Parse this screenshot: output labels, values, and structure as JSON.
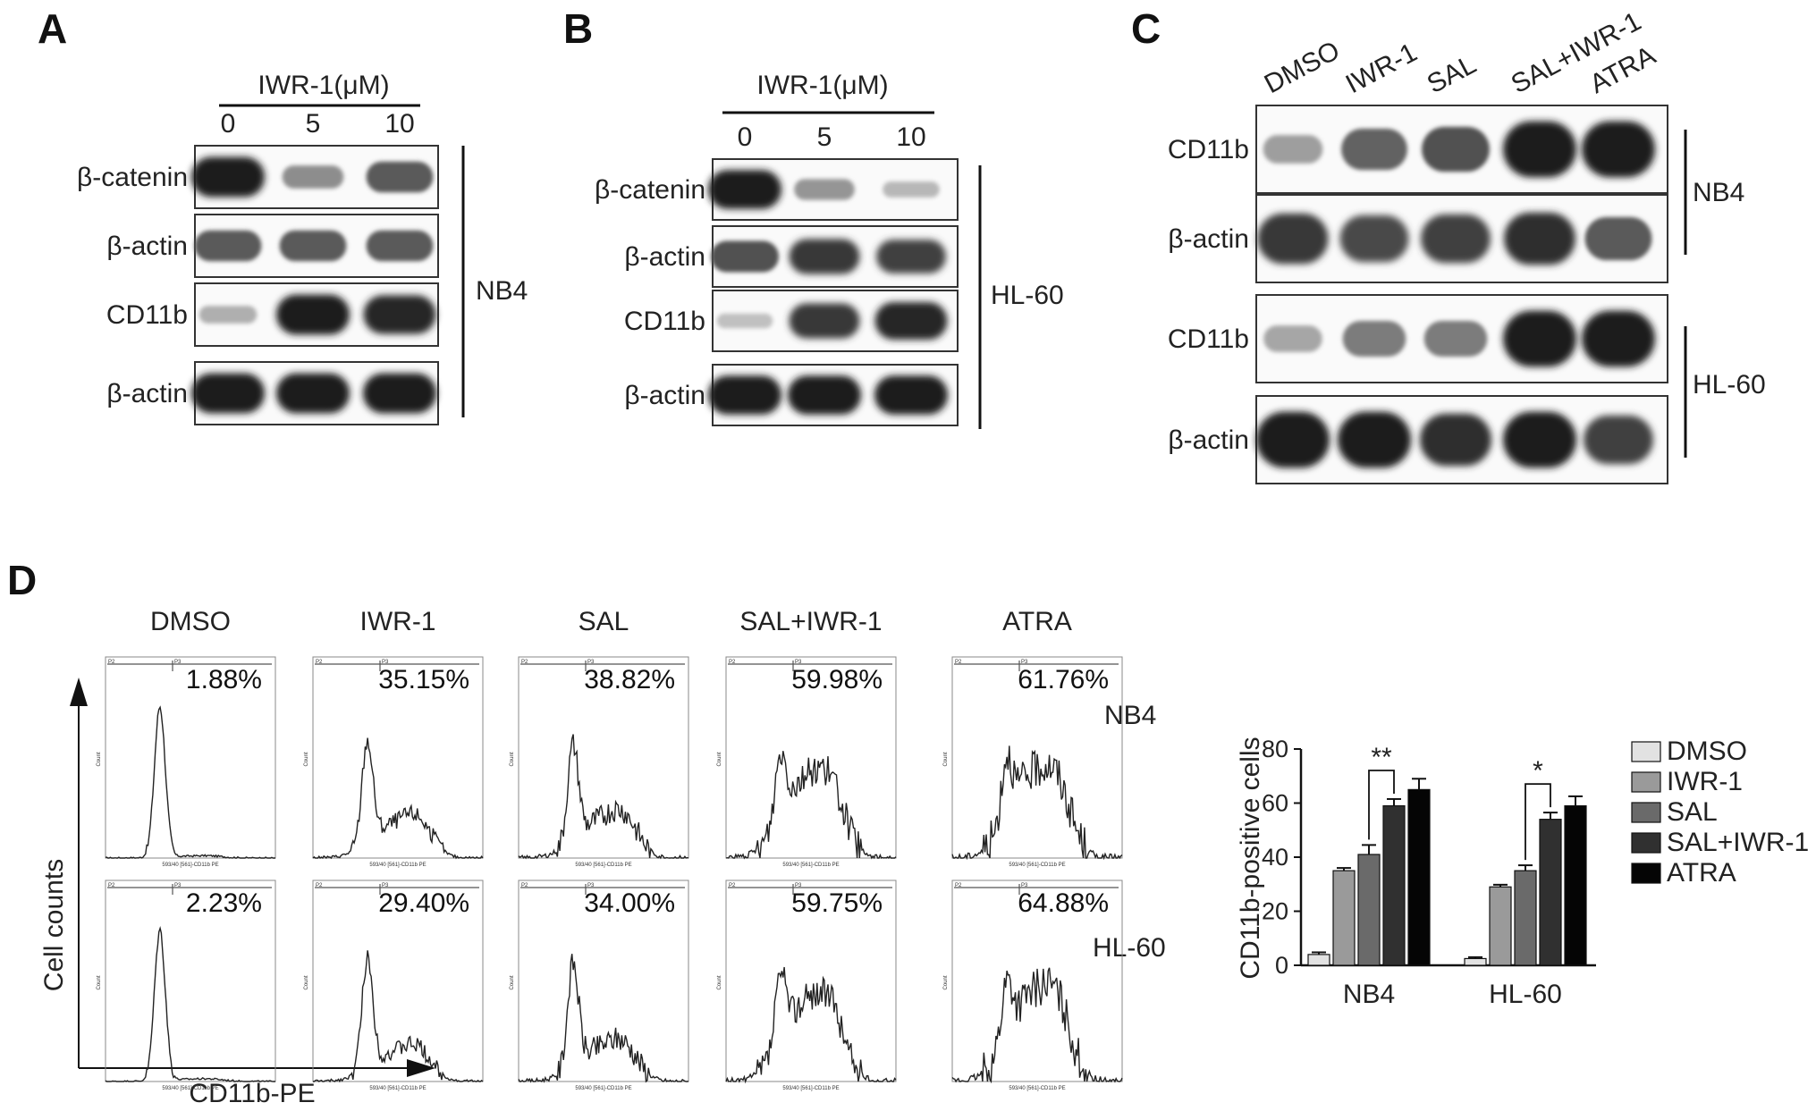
{
  "panel_labels": [
    "A",
    "B",
    "C",
    "D"
  ],
  "panelA": {
    "header": "IWR-1(μM)",
    "lanes": [
      "0",
      "5",
      "10"
    ],
    "rows": [
      {
        "label": "β-catenin",
        "bands": [
          1.0,
          0.35,
          0.65
        ]
      },
      {
        "label": "β-actin",
        "bands": [
          0.65,
          0.65,
          0.65
        ]
      },
      {
        "label": "CD11b",
        "bands": [
          0.15,
          1.0,
          0.95
        ]
      },
      {
        "label": "β-actin",
        "bands": [
          1.0,
          1.0,
          1.0
        ]
      }
    ],
    "cell_line": "NB4"
  },
  "panelB": {
    "header": "IWR-1(μM)",
    "lanes": [
      "0",
      "5",
      "10"
    ],
    "rows": [
      {
        "label": "β-catenin",
        "bands": [
          1.0,
          0.3,
          0.1
        ]
      },
      {
        "label": "β-actin",
        "bands": [
          0.7,
          0.85,
          0.8
        ]
      },
      {
        "label": "CD11b",
        "bands": [
          0.05,
          0.85,
          0.95
        ]
      },
      {
        "label": "β-actin",
        "bands": [
          1.0,
          1.0,
          1.0
        ]
      }
    ],
    "cell_line": "HL-60"
  },
  "panelC": {
    "lanes": [
      "DMSO",
      "IWR-1",
      "SAL",
      "SAL+IWR-1",
      "ATRA"
    ],
    "rows": [
      {
        "label": "CD11b",
        "bands": [
          0.25,
          0.6,
          0.7,
          1.0,
          1.0
        ]
      },
      {
        "label": "β-actin",
        "bands": [
          0.85,
          0.75,
          0.8,
          0.9,
          0.65
        ]
      },
      {
        "label": "CD11b",
        "bands": [
          0.2,
          0.45,
          0.45,
          1.0,
          1.0
        ]
      },
      {
        "label": "β-actin",
        "bands": [
          1.0,
          1.0,
          0.9,
          1.0,
          0.8
        ]
      }
    ],
    "cell_lines": [
      "NB4",
      "HL-60"
    ]
  },
  "panelD": {
    "conditions": [
      "DMSO",
      "IWR-1",
      "SAL",
      "SAL+IWR-1",
      "ATRA"
    ],
    "nb4_percent": [
      "1.88%",
      "35.15%",
      "38.82%",
      "59.98%",
      "61.76%"
    ],
    "hl60_percent": [
      "2.23%",
      "29.40%",
      "34.00%",
      "59.75%",
      "64.88%"
    ],
    "row_labels": [
      "NB4",
      "HL-60"
    ],
    "gate_labels": [
      "P2",
      "P3"
    ],
    "ylabel": "Cell counts",
    "xlabel": "CD11b-PE",
    "hist_ylabel": "Count",
    "hist_xlabel": "593/40 [561]-CD11b PE"
  },
  "chart_data": {
    "type": "bar",
    "categories": [
      "NB4",
      "HL-60"
    ],
    "series": [
      {
        "name": "DMSO",
        "values": [
          4,
          2.5
        ],
        "errors": [
          0.8,
          0.5
        ],
        "color": "#e2e2e2"
      },
      {
        "name": "IWR-1",
        "values": [
          35,
          29
        ],
        "errors": [
          1,
          0.8
        ],
        "color": "#9a9a9a"
      },
      {
        "name": "SAL",
        "values": [
          41,
          35
        ],
        "errors": [
          3.5,
          2
        ],
        "color": "#6a6a6a"
      },
      {
        "name": "SAL+IWR-1",
        "values": [
          59,
          54
        ],
        "errors": [
          2.5,
          2.5
        ],
        "color": "#303030"
      },
      {
        "name": "ATRA",
        "values": [
          65,
          59
        ],
        "errors": [
          4,
          3.5
        ],
        "color": "#050505"
      }
    ],
    "ylabel": "CD11b-positive cells",
    "ylim": [
      0,
      80
    ],
    "yticks": [
      0,
      20,
      40,
      60,
      80
    ],
    "significance": [
      {
        "category": "NB4",
        "from": "SAL",
        "to": "SAL+IWR-1",
        "label": "**"
      },
      {
        "category": "HL-60",
        "from": "SAL",
        "to": "SAL+IWR-1",
        "label": "*"
      }
    ],
    "legend_position": "right"
  }
}
